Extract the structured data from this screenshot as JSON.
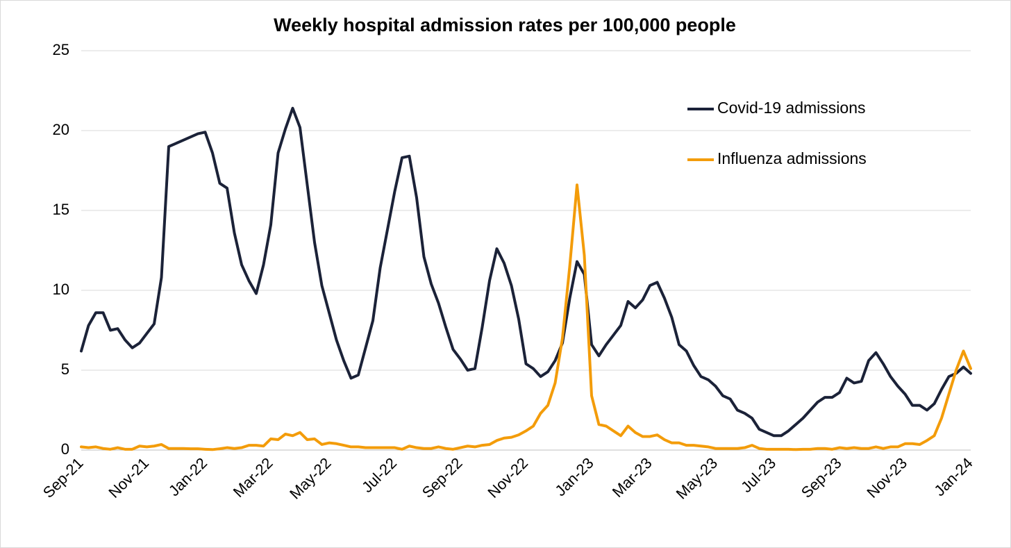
{
  "chart_data": {
    "type": "line",
    "title": "Weekly hospital admission rates per 100,000 people",
    "categories": [
      "Sep-21",
      null,
      null,
      null,
      null,
      null,
      null,
      null,
      null,
      "Nov-21",
      null,
      null,
      null,
      null,
      null,
      null,
      null,
      "Jan-22",
      null,
      null,
      null,
      null,
      null,
      null,
      null,
      null,
      "Mar-22",
      null,
      null,
      null,
      null,
      null,
      null,
      null,
      "May-22",
      null,
      null,
      null,
      null,
      null,
      null,
      null,
      null,
      "Jul-22",
      null,
      null,
      null,
      null,
      null,
      null,
      null,
      null,
      "Sep-22",
      null,
      null,
      null,
      null,
      null,
      null,
      null,
      null,
      "Nov-22",
      null,
      null,
      null,
      null,
      null,
      null,
      null,
      null,
      "Jan-23",
      null,
      null,
      null,
      null,
      null,
      null,
      null,
      "Mar-23",
      null,
      null,
      null,
      null,
      null,
      null,
      null,
      null,
      "May-23",
      null,
      null,
      null,
      null,
      null,
      null,
      null,
      "Jul-23",
      null,
      null,
      null,
      null,
      null,
      null,
      null,
      null,
      "Sep-23",
      null,
      null,
      null,
      null,
      null,
      null,
      null,
      null,
      "Nov-23",
      null,
      null,
      null,
      null,
      null,
      null,
      null,
      null,
      "Jan-24"
    ],
    "series": [
      {
        "name": "Covid-19 admissions",
        "color": "#1b2238",
        "values": [
          6.2,
          7.8,
          8.6,
          8.6,
          7.5,
          7.6,
          6.9,
          6.4,
          6.7,
          7.3,
          7.9,
          10.8,
          19.0,
          19.2,
          19.4,
          19.6,
          19.8,
          19.9,
          18.6,
          16.7,
          16.4,
          13.6,
          11.6,
          10.6,
          9.8,
          11.6,
          14.1,
          18.6,
          20.1,
          21.4,
          20.2,
          16.6,
          13.0,
          10.3,
          8.6,
          6.9,
          5.6,
          4.5,
          4.7,
          6.4,
          8.1,
          11.4,
          13.8,
          16.2,
          18.3,
          18.4,
          15.8,
          12.1,
          10.4,
          9.2,
          7.7,
          6.3,
          5.7,
          5.0,
          5.1,
          7.7,
          10.6,
          12.6,
          11.7,
          10.3,
          8.2,
          5.4,
          5.1,
          4.6,
          4.9,
          5.6,
          6.7,
          9.5,
          11.8,
          11.0,
          6.6,
          5.9,
          6.6,
          7.2,
          7.8,
          9.3,
          8.9,
          9.4,
          10.3,
          10.5,
          9.5,
          8.3,
          6.6,
          6.2,
          5.3,
          4.6,
          4.4,
          4.0,
          3.4,
          3.2,
          2.5,
          2.3,
          2.0,
          1.3,
          1.1,
          0.9,
          0.9,
          1.2,
          1.6,
          2.0,
          2.5,
          3.0,
          3.3,
          3.3,
          3.6,
          4.5,
          4.2,
          4.3,
          5.6,
          6.1,
          5.4,
          4.6,
          4.0,
          3.5,
          2.8,
          2.8,
          2.5,
          2.9,
          3.8,
          4.6,
          4.8,
          5.2,
          4.8
        ]
      },
      {
        "name": "Influenza admissions",
        "color": "#f39c0a",
        "values": [
          0.2,
          0.15,
          0.2,
          0.1,
          0.05,
          0.15,
          0.05,
          0.05,
          0.25,
          0.2,
          0.25,
          0.35,
          0.1,
          0.1,
          0.1,
          0.08,
          0.08,
          0.05,
          0.03,
          0.08,
          0.15,
          0.1,
          0.15,
          0.3,
          0.3,
          0.25,
          0.7,
          0.65,
          1.0,
          0.9,
          1.1,
          0.65,
          0.7,
          0.35,
          0.45,
          0.4,
          0.3,
          0.2,
          0.2,
          0.15,
          0.15,
          0.15,
          0.15,
          0.15,
          0.05,
          0.25,
          0.15,
          0.1,
          0.1,
          0.2,
          0.1,
          0.05,
          0.15,
          0.25,
          0.2,
          0.3,
          0.35,
          0.6,
          0.75,
          0.8,
          0.95,
          1.2,
          1.5,
          2.3,
          2.8,
          4.2,
          7.0,
          11.5,
          16.6,
          12.2,
          3.4,
          1.6,
          1.5,
          1.2,
          0.9,
          1.5,
          1.1,
          0.85,
          0.85,
          0.95,
          0.65,
          0.45,
          0.45,
          0.3,
          0.3,
          0.25,
          0.2,
          0.1,
          0.1,
          0.1,
          0.1,
          0.15,
          0.3,
          0.1,
          0.05,
          0.05,
          0.05,
          0.05,
          0.03,
          0.05,
          0.05,
          0.1,
          0.1,
          0.05,
          0.15,
          0.1,
          0.15,
          0.1,
          0.1,
          0.2,
          0.1,
          0.2,
          0.2,
          0.4,
          0.4,
          0.35,
          0.6,
          0.9,
          2.0,
          3.5,
          5.0,
          6.2,
          5.1
        ]
      }
    ],
    "ylim": [
      0,
      25
    ],
    "yticks": [
      0,
      5,
      10,
      15,
      20,
      25
    ],
    "grid": true,
    "legend": "upper right"
  }
}
